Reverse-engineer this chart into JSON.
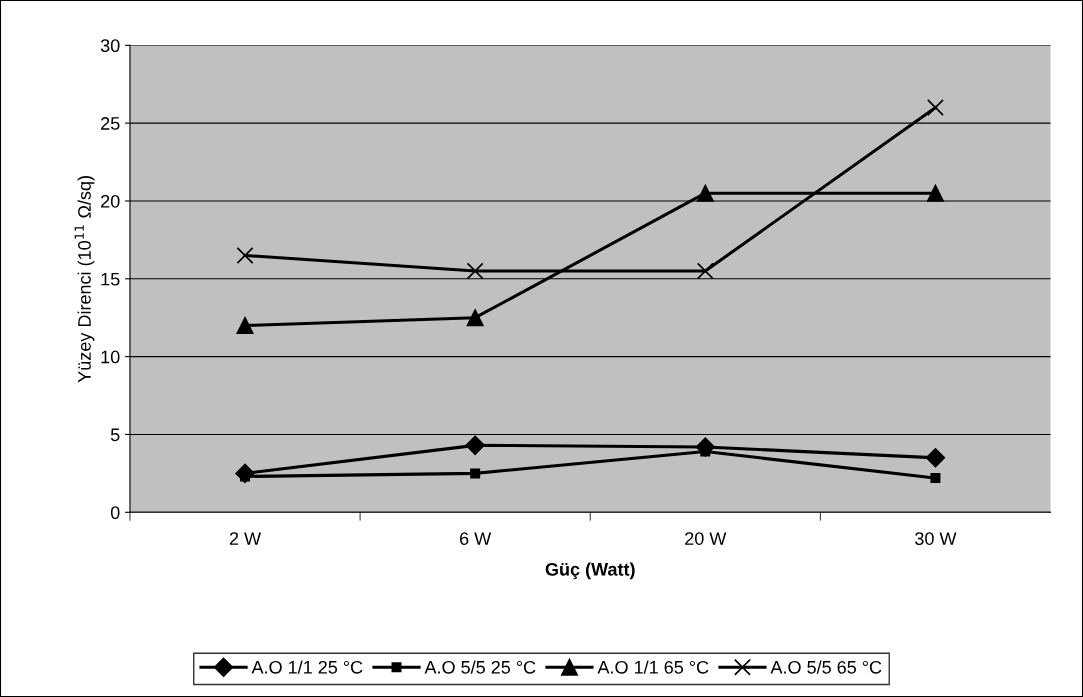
{
  "chart_data": {
    "type": "line",
    "xlabel": "Güç (Watt)",
    "ylabel": "Yüzey Direnci (10$^{11}$ Ω/sq)",
    "categories": [
      "2 W",
      "6 W",
      "20 W",
      "30 W"
    ],
    "series": [
      {
        "name": "A.O 1/1 25 °C",
        "color": "#000000",
        "marker": "diamond",
        "values": [
          2.5,
          4.3,
          4.2,
          3.5
        ]
      },
      {
        "name": "A.O 5/5 25 °C",
        "color": "#000000",
        "marker": "square",
        "values": [
          2.3,
          2.5,
          3.9,
          2.2
        ]
      },
      {
        "name": "A.O 1/1 65 °C",
        "color": "#000000",
        "marker": "triangle",
        "values": [
          12,
          12.5,
          20.5,
          20.5
        ]
      },
      {
        "name": "A.O 5/5 65 °C",
        "color": "#000000",
        "marker": "cross",
        "values": [
          16.5,
          15.5,
          15.5,
          26
        ]
      }
    ],
    "ylim": [
      0,
      30
    ],
    "yticks": [
      0,
      5,
      10,
      15,
      20,
      25,
      30
    ],
    "grid": "y",
    "legend": "bottom"
  }
}
